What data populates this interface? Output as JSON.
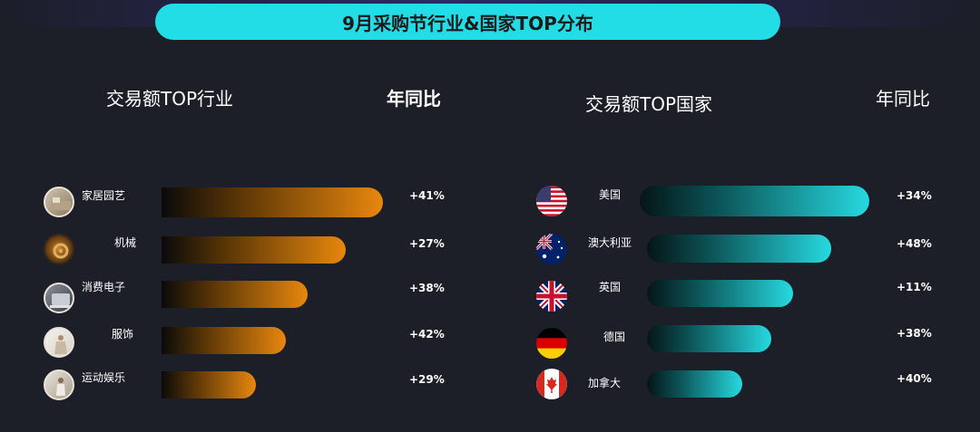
{
  "title": "9月采购节行业&国家TOP分布",
  "left_panel": {
    "heading": "交易额TOP行业",
    "yoy_heading": "年同比"
  },
  "right_panel": {
    "heading": "交易额TOP国家",
    "yoy_heading": "年同比"
  },
  "chart_data": [
    {
      "type": "bar",
      "title": "交易额TOP行业",
      "categories": [
        "家居园艺",
        "机械",
        "消费电子",
        "服饰",
        "运动娱乐"
      ],
      "labels": [
        "+41%",
        "+27%",
        "+38%",
        "+42%",
        "+29%"
      ],
      "relative_length": [
        5,
        4,
        3,
        2,
        1
      ],
      "colors": {
        "bar_end": "#e8870e"
      }
    },
    {
      "type": "bar",
      "title": "交易额TOP国家",
      "categories": [
        "美国",
        "澳大利亚",
        "英国",
        "德国",
        "加拿大"
      ],
      "labels": [
        "+34%",
        "+48%",
        "+11%",
        "+38%",
        "+40%"
      ],
      "relative_length": [
        5,
        4,
        3,
        2,
        1
      ],
      "colors": {
        "bar_end": "#26d9e0"
      }
    }
  ],
  "colors": {
    "title_bg": "#23dde6",
    "background": "#1c1e28"
  }
}
